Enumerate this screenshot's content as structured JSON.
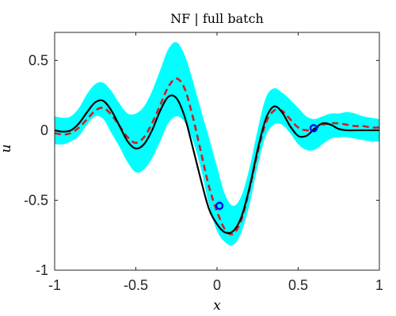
{
  "chart_data": {
    "type": "line",
    "title": "NF | full batch",
    "xlabel": "x",
    "ylabel": "u",
    "xlim": [
      -1,
      1
    ],
    "ylim": [
      -1,
      0.7
    ],
    "xticks": [
      -1,
      -0.5,
      0,
      0.5,
      1
    ],
    "xtick_labels": [
      "-1",
      "-0.5",
      "0",
      "0.5",
      "1"
    ],
    "yticks": [
      -1,
      -0.5,
      0,
      0.5
    ],
    "ytick_labels": [
      "-1",
      "-0.5",
      "0",
      "0.5"
    ],
    "grid": false,
    "legend": "none",
    "x": [
      -1.0,
      -0.95,
      -0.9,
      -0.85,
      -0.8,
      -0.75,
      -0.7,
      -0.65,
      -0.6,
      -0.55,
      -0.5,
      -0.45,
      -0.4,
      -0.35,
      -0.3,
      -0.25,
      -0.2,
      -0.15,
      -0.1,
      -0.05,
      0.0,
      0.05,
      0.1,
      0.15,
      0.2,
      0.25,
      0.3,
      0.35,
      0.4,
      0.45,
      0.5,
      0.55,
      0.6,
      0.65,
      0.7,
      0.75,
      0.8,
      0.85,
      0.9,
      0.95,
      1.0
    ],
    "series": [
      {
        "role": "band",
        "color": "#00ffff",
        "upper": [
          0.1,
          0.09,
          0.1,
          0.16,
          0.26,
          0.33,
          0.34,
          0.28,
          0.19,
          0.12,
          0.12,
          0.17,
          0.28,
          0.43,
          0.58,
          0.63,
          0.54,
          0.36,
          0.15,
          -0.05,
          -0.26,
          -0.46,
          -0.54,
          -0.47,
          -0.27,
          0.0,
          0.23,
          0.3,
          0.27,
          0.22,
          0.16,
          0.1,
          0.08,
          0.1,
          0.12,
          0.12,
          0.13,
          0.12,
          0.1,
          0.09,
          0.08
        ],
        "lower": [
          -0.1,
          -0.1,
          -0.08,
          -0.04,
          0.04,
          0.1,
          0.08,
          -0.02,
          -0.12,
          -0.23,
          -0.3,
          -0.28,
          -0.2,
          -0.08,
          0.05,
          0.1,
          0.06,
          -0.07,
          -0.27,
          -0.53,
          -0.72,
          -0.8,
          -0.82,
          -0.73,
          -0.53,
          -0.26,
          -0.04,
          0.04,
          0.04,
          -0.02,
          -0.1,
          -0.14,
          -0.14,
          -0.1,
          -0.06,
          -0.05,
          -0.05,
          -0.06,
          -0.07,
          -0.08,
          -0.08
        ]
      },
      {
        "role": "mean",
        "color": "#000000",
        "style": "solid",
        "values": [
          0.0,
          -0.01,
          0.0,
          0.05,
          0.13,
          0.2,
          0.21,
          0.14,
          0.03,
          -0.08,
          -0.13,
          -0.1,
          0.0,
          0.14,
          0.24,
          0.23,
          0.1,
          -0.12,
          -0.35,
          -0.56,
          -0.67,
          -0.73,
          -0.72,
          -0.62,
          -0.41,
          -0.14,
          0.08,
          0.17,
          0.13,
          0.03,
          -0.04,
          -0.04,
          0.01,
          0.05,
          0.04,
          0.01,
          0.0,
          0.0,
          0.0,
          0.0,
          0.0
        ]
      },
      {
        "role": "reference",
        "color": "#cc2020",
        "style": "dashed",
        "values": [
          -0.02,
          -0.03,
          -0.02,
          0.02,
          0.08,
          0.14,
          0.16,
          0.11,
          0.03,
          -0.05,
          -0.09,
          -0.05,
          0.05,
          0.18,
          0.31,
          0.37,
          0.3,
          0.1,
          -0.15,
          -0.4,
          -0.58,
          -0.71,
          -0.74,
          -0.64,
          -0.42,
          -0.16,
          0.05,
          0.14,
          0.14,
          0.08,
          0.02,
          0.0,
          0.01,
          0.04,
          0.05,
          0.05,
          0.04,
          0.03,
          0.03,
          0.02,
          0.02
        ]
      }
    ],
    "markers": {
      "color": "#0000ff",
      "shape": "circle-open",
      "points": [
        {
          "x": 0.015,
          "y": -0.54
        },
        {
          "x": 0.595,
          "y": 0.015
        }
      ]
    }
  }
}
